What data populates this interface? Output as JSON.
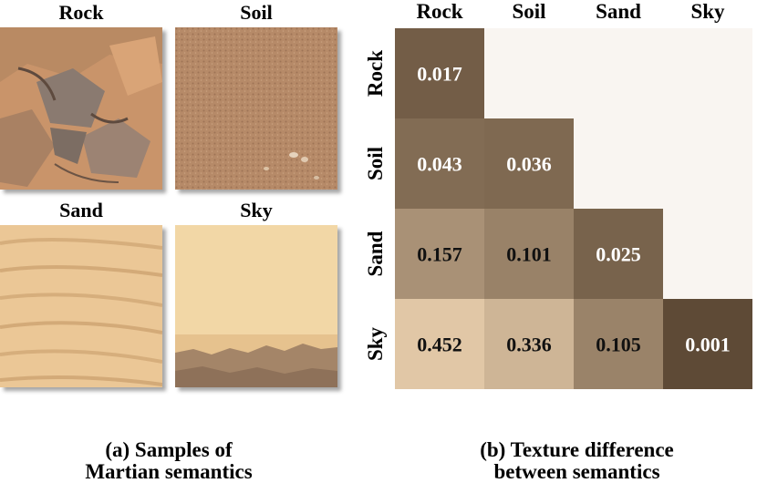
{
  "samples": {
    "items": [
      {
        "label": "Rock"
      },
      {
        "label": "Soil"
      },
      {
        "label": "Sand"
      },
      {
        "label": "Sky"
      }
    ],
    "caption_line1": "(a) Samples of",
    "caption_line2": "Martian semantics"
  },
  "heatmap_caption": {
    "line1": "(b) Texture difference",
    "line2": "between semantics"
  },
  "chart_data": {
    "type": "heatmap",
    "x_categories": [
      "Rock",
      "Soil",
      "Sand",
      "Sky"
    ],
    "y_categories": [
      "Rock",
      "Soil",
      "Sand",
      "Sky"
    ],
    "values": [
      [
        0.017,
        null,
        null,
        null
      ],
      [
        0.043,
        0.036,
        null,
        null
      ],
      [
        0.157,
        0.101,
        0.025,
        null
      ],
      [
        0.452,
        0.336,
        0.105,
        0.001
      ]
    ],
    "empty_cell_color": "#f9f5f1",
    "colorscale": "dark brown (low) to light tan (high)"
  }
}
